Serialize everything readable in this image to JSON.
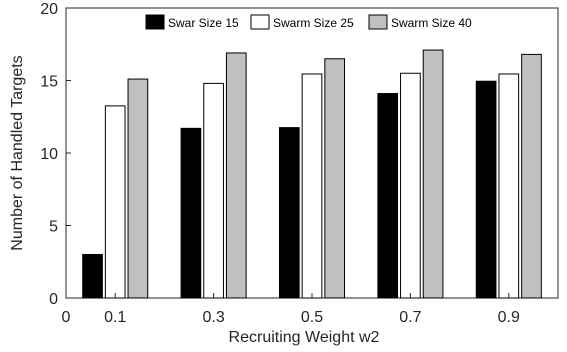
{
  "chart_data": {
    "type": "bar",
    "xlabel": "Recruiting Weight w2",
    "ylabel": "Number of Handled Targets",
    "x_ticks": [
      "0",
      "0.1",
      "0.3",
      "0.5",
      "0.7",
      "0.9"
    ],
    "categories": [
      "0.1",
      "0.3",
      "0.5",
      "0.7",
      "0.9"
    ],
    "ylim": [
      0,
      20
    ],
    "y_ticks": [
      "0",
      "5",
      "10",
      "15",
      "20"
    ],
    "grid": false,
    "legend_position": "top",
    "series": [
      {
        "name": "Swar Size 15",
        "color": "#000000",
        "values": [
          3.0,
          11.7,
          11.75,
          14.1,
          14.95
        ]
      },
      {
        "name": "Swarm Size 25",
        "color": "#ffffff",
        "values": [
          13.25,
          14.8,
          15.45,
          15.5,
          15.45
        ]
      },
      {
        "name": "Swarm Size 40",
        "color": "#c0c0c0",
        "values": [
          15.1,
          16.9,
          16.5,
          17.1,
          16.8
        ]
      }
    ]
  }
}
